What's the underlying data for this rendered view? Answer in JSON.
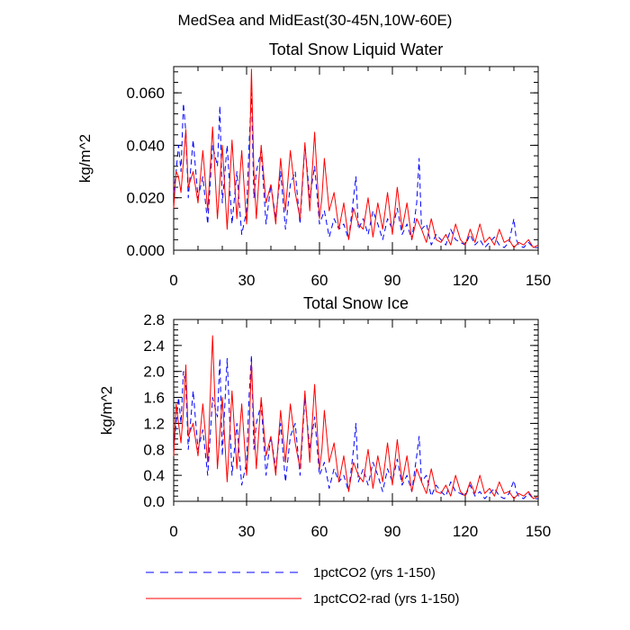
{
  "figure": {
    "suptitle": "MedSea and MidEast(30-45N,10W-60E)"
  },
  "legend": {
    "entries": [
      {
        "label": "1pctCO2 (yrs 1-150)",
        "color": "#0000ff",
        "dash": "dashed"
      },
      {
        "label": "1pctCO2-rad (yrs 1-150)",
        "color": "#ff0000",
        "dash": "solid"
      }
    ]
  },
  "chart_data": [
    {
      "type": "line",
      "title": "Total Snow Liquid Water",
      "xlabel": "",
      "ylabel": "kg/m^2",
      "xlim": [
        0,
        150
      ],
      "ylim": [
        0,
        0.07
      ],
      "xticks": [
        0,
        30,
        60,
        90,
        120,
        150
      ],
      "xtick_labels": [
        "0",
        "30",
        "60",
        "90",
        "120",
        "150"
      ],
      "yticks": [
        0,
        0.02,
        0.04,
        0.06
      ],
      "ytick_labels": [
        "0.000",
        "0.020",
        "0.040",
        "0.060"
      ],
      "grid": false,
      "series": [
        {
          "name": "1pctCO2 (yrs 1-150)",
          "color": "#0000ff",
          "dash": "dashed",
          "x": [
            0,
            1,
            2,
            3,
            4,
            5,
            6,
            8,
            10,
            12,
            14,
            16,
            18,
            19,
            20,
            22,
            24,
            26,
            28,
            30,
            31,
            32,
            33,
            34,
            36,
            38,
            40,
            42,
            44,
            46,
            48,
            50,
            52,
            54,
            56,
            58,
            60,
            62,
            64,
            66,
            68,
            70,
            72,
            74,
            75,
            76,
            78,
            80,
            82,
            84,
            86,
            88,
            90,
            92,
            94,
            96,
            98,
            100,
            101,
            102,
            104,
            106,
            108,
            110,
            112,
            114,
            116,
            118,
            120,
            122,
            124,
            126,
            128,
            130,
            132,
            134,
            136,
            138,
            140,
            141,
            142,
            144,
            146,
            148,
            150
          ],
          "y": [
            0.022,
            0.03,
            0.04,
            0.03,
            0.056,
            0.045,
            0.02,
            0.042,
            0.02,
            0.028,
            0.01,
            0.04,
            0.032,
            0.055,
            0.018,
            0.04,
            0.01,
            0.03,
            0.006,
            0.015,
            0.04,
            0.06,
            0.02,
            0.03,
            0.038,
            0.01,
            0.025,
            0.012,
            0.03,
            0.008,
            0.025,
            0.03,
            0.01,
            0.04,
            0.02,
            0.032,
            0.01,
            0.015,
            0.005,
            0.012,
            0.008,
            0.01,
            0.004,
            0.02,
            0.028,
            0.008,
            0.012,
            0.006,
            0.015,
            0.01,
            0.004,
            0.012,
            0.008,
            0.016,
            0.006,
            0.01,
            0.004,
            0.018,
            0.035,
            0.008,
            0.01,
            0.002,
            0.006,
            0.004,
            0.002,
            0.008,
            0.004,
            0.003,
            0.002,
            0.006,
            0.002,
            0.004,
            0.001,
            0.003,
            0.005,
            0.002,
            0.001,
            0.003,
            0.012,
            0.004,
            0.002,
            0.001,
            0.003,
            0.001,
            0.001
          ]
        },
        {
          "name": "1pctCO2-rad (yrs 1-150)",
          "color": "#ff0000",
          "dash": "solid",
          "x": [
            0,
            1,
            2,
            3,
            4,
            5,
            6,
            8,
            10,
            12,
            14,
            16,
            18,
            20,
            22,
            24,
            26,
            28,
            30,
            31,
            32,
            33,
            34,
            36,
            38,
            40,
            42,
            44,
            46,
            48,
            50,
            52,
            54,
            56,
            58,
            60,
            61,
            62,
            64,
            66,
            68,
            70,
            72,
            74,
            76,
            78,
            80,
            82,
            84,
            86,
            88,
            90,
            92,
            94,
            96,
            98,
            100,
            102,
            104,
            106,
            108,
            110,
            112,
            114,
            116,
            118,
            120,
            122,
            124,
            126,
            128,
            130,
            132,
            134,
            136,
            138,
            140,
            142,
            144,
            146,
            148,
            150
          ],
          "y": [
            0.016,
            0.03,
            0.028,
            0.022,
            0.034,
            0.046,
            0.024,
            0.03,
            0.018,
            0.038,
            0.015,
            0.047,
            0.012,
            0.04,
            0.008,
            0.042,
            0.012,
            0.038,
            0.01,
            0.025,
            0.069,
            0.03,
            0.012,
            0.04,
            0.018,
            0.025,
            0.01,
            0.035,
            0.015,
            0.038,
            0.022,
            0.012,
            0.041,
            0.015,
            0.045,
            0.012,
            0.02,
            0.035,
            0.015,
            0.022,
            0.008,
            0.018,
            0.004,
            0.016,
            0.01,
            0.008,
            0.02,
            0.005,
            0.018,
            0.008,
            0.022,
            0.006,
            0.024,
            0.008,
            0.018,
            0.004,
            0.012,
            0.008,
            0.003,
            0.012,
            0.004,
            0.003,
            0.006,
            0.002,
            0.01,
            0.004,
            0.002,
            0.008,
            0.003,
            0.01,
            0.003,
            0.005,
            0.002,
            0.008,
            0.003,
            0.004,
            0.001,
            0.003,
            0.002,
            0.004,
            0.001,
            0.002
          ]
        }
      ]
    },
    {
      "type": "line",
      "title": "Total Snow Ice",
      "xlabel": "",
      "ylabel": "kg/m^2",
      "xlim": [
        0,
        150
      ],
      "ylim": [
        0,
        2.8
      ],
      "xticks": [
        0,
        30,
        60,
        90,
        120,
        150
      ],
      "xtick_labels": [
        "0",
        "30",
        "60",
        "90",
        "120",
        "150"
      ],
      "yticks": [
        0,
        0.4,
        0.8,
        1.2,
        1.6,
        2.0,
        2.4,
        2.8
      ],
      "ytick_labels": [
        "0.0",
        "0.4",
        "0.8",
        "1.2",
        "1.6",
        "2.0",
        "2.4",
        "2.8"
      ],
      "grid": false,
      "series": [
        {
          "name": "1pctCO2 (yrs 1-150)",
          "color": "#0000ff",
          "dash": "dashed",
          "x": [
            0,
            1,
            2,
            3,
            4,
            5,
            6,
            8,
            10,
            12,
            14,
            16,
            18,
            19,
            20,
            22,
            24,
            26,
            28,
            30,
            31,
            32,
            33,
            34,
            36,
            38,
            40,
            42,
            44,
            46,
            48,
            50,
            52,
            54,
            56,
            58,
            60,
            62,
            64,
            66,
            68,
            70,
            72,
            74,
            75,
            76,
            78,
            80,
            82,
            84,
            86,
            88,
            90,
            92,
            94,
            96,
            98,
            100,
            101,
            102,
            104,
            106,
            108,
            110,
            112,
            114,
            116,
            118,
            120,
            122,
            124,
            126,
            128,
            130,
            132,
            134,
            136,
            138,
            140,
            141,
            142,
            144,
            146,
            148,
            150
          ],
          "y": [
            0.8,
            1.2,
            1.6,
            1.2,
            2.0,
            1.8,
            0.8,
            1.7,
            0.8,
            1.1,
            0.4,
            1.6,
            1.3,
            2.2,
            0.7,
            2.2,
            0.4,
            1.2,
            0.25,
            0.6,
            1.6,
            2.25,
            0.8,
            1.2,
            1.5,
            0.4,
            1.0,
            0.5,
            1.2,
            0.3,
            1.0,
            1.2,
            0.4,
            1.6,
            0.8,
            1.3,
            0.4,
            0.6,
            0.2,
            0.5,
            0.3,
            0.4,
            0.15,
            0.8,
            1.2,
            0.3,
            0.5,
            0.25,
            0.6,
            0.4,
            0.15,
            0.5,
            0.3,
            0.65,
            0.25,
            0.4,
            0.15,
            0.7,
            1.0,
            0.3,
            0.4,
            0.08,
            0.25,
            0.15,
            0.08,
            0.3,
            0.15,
            0.12,
            0.08,
            0.25,
            0.08,
            0.15,
            0.04,
            0.12,
            0.2,
            0.08,
            0.04,
            0.12,
            0.32,
            0.15,
            0.08,
            0.04,
            0.12,
            0.04,
            0.04
          ]
        },
        {
          "name": "1pctCO2-rad (yrs 1-150)",
          "color": "#ff0000",
          "dash": "solid",
          "x": [
            0,
            1,
            2,
            3,
            4,
            5,
            6,
            8,
            10,
            12,
            14,
            16,
            18,
            20,
            22,
            24,
            26,
            28,
            30,
            31,
            32,
            33,
            34,
            36,
            38,
            40,
            42,
            44,
            46,
            48,
            50,
            52,
            54,
            56,
            58,
            60,
            61,
            62,
            64,
            66,
            68,
            70,
            72,
            74,
            76,
            78,
            80,
            82,
            84,
            86,
            88,
            90,
            92,
            94,
            96,
            98,
            100,
            102,
            104,
            106,
            108,
            110,
            112,
            114,
            116,
            118,
            120,
            122,
            124,
            126,
            128,
            130,
            132,
            134,
            136,
            138,
            140,
            142,
            144,
            146,
            148,
            150
          ],
          "y": [
            0.7,
            1.5,
            1.2,
            0.9,
            1.4,
            2.1,
            1.0,
            1.2,
            0.7,
            1.5,
            0.6,
            2.55,
            0.5,
            1.6,
            0.3,
            1.7,
            0.5,
            1.5,
            0.4,
            1.0,
            2.15,
            1.2,
            0.5,
            1.6,
            0.7,
            1.0,
            0.4,
            1.4,
            0.6,
            1.5,
            0.9,
            0.5,
            1.7,
            0.6,
            1.8,
            0.5,
            0.8,
            1.4,
            0.6,
            0.9,
            0.3,
            0.7,
            0.15,
            0.6,
            0.4,
            0.3,
            0.8,
            0.2,
            0.7,
            0.3,
            0.9,
            0.25,
            0.95,
            0.3,
            0.7,
            0.15,
            0.5,
            0.3,
            0.12,
            0.5,
            0.15,
            0.12,
            0.25,
            0.08,
            0.4,
            0.15,
            0.08,
            0.3,
            0.12,
            0.4,
            0.12,
            0.2,
            0.08,
            0.3,
            0.12,
            0.15,
            0.04,
            0.12,
            0.08,
            0.15,
            0.04,
            0.08
          ]
        }
      ]
    }
  ]
}
